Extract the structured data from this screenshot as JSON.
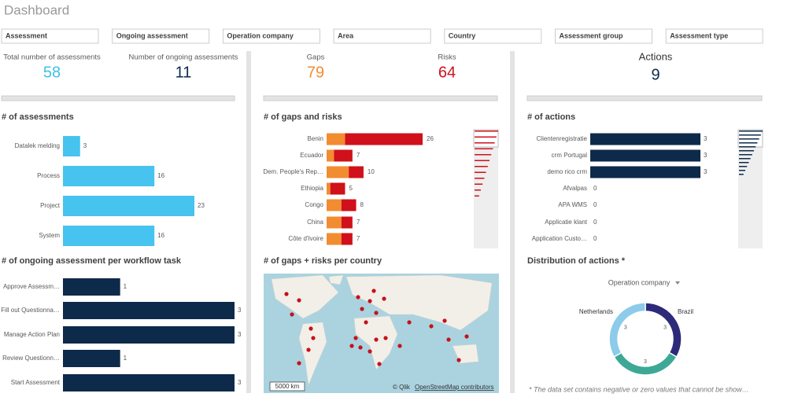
{
  "header": {
    "title": "Dashboard"
  },
  "filters": [
    "Assessment",
    "Ongoing assessment",
    "Operation company",
    "Area",
    "Country",
    "Assessment group",
    "Assessment type"
  ],
  "kpis": [
    {
      "label": "Total number of assessments",
      "value": 58,
      "color": "#3fc0ea"
    },
    {
      "label": "Number of ongoing assessments",
      "value": 11,
      "color": "#0d2a4a"
    },
    {
      "label": "Gaps",
      "value": 79,
      "color": "#f28c30"
    },
    {
      "label": "Risks",
      "value": 64,
      "color": "#d0101a"
    },
    {
      "label": "Actions",
      "value": 9,
      "color": "#0d2a4a"
    }
  ],
  "charts": [
    {
      "type": "hbar",
      "title": "# of assessments",
      "categories": [
        "Datalek melding",
        "Process",
        "Project",
        "System"
      ],
      "values": [
        3,
        16,
        23,
        16
      ],
      "color": "#46c3ee"
    },
    {
      "type": "hbar",
      "title": "# of ongoing assessment per workflow task",
      "categories": [
        "Approve Assessm…",
        "Fill out Questionna…",
        "Manage Action Plan",
        "Review Questionn…",
        "Start Assessment"
      ],
      "values": [
        1,
        3,
        3,
        1,
        3
      ],
      "color": "#0d2a4a"
    },
    {
      "type": "stacked",
      "title": "# of gaps and risks",
      "categories": [
        "Benin",
        "Ecuador",
        "Dem. People's Rep…",
        "Ethiopia",
        "Congo",
        "China",
        "Côte d'Ivoire"
      ],
      "series": [
        {
          "color": "#f28c30",
          "values": [
            5,
            2,
            6,
            1,
            4,
            4,
            4
          ]
        },
        {
          "color": "#d0101a",
          "values": [
            21,
            5,
            4,
            4,
            4,
            3,
            3
          ]
        }
      ],
      "totals": [
        26,
        7,
        10,
        5,
        8,
        7,
        7
      ]
    },
    {
      "type": "hbar",
      "title": "# of actions",
      "categories": [
        "Clientenregistratie",
        "crm Portugal",
        "demo rico crm",
        "Afvalpas",
        "APA WMS",
        "Applicatie klant",
        "Application Custo…"
      ],
      "values": [
        3,
        3,
        3,
        0,
        0,
        0,
        0
      ],
      "color": "#0d2a4a"
    },
    {
      "type": "map",
      "title": "# of gaps + risks per country",
      "scale": "5000 km",
      "attribution": [
        "© Qlik",
        "OpenStreetMap contributors"
      ]
    },
    {
      "type": "donut",
      "title": "Distribution of actions *",
      "dimension": "Operation company",
      "categories": [
        "Brazil",
        null,
        "Netherlands"
      ],
      "values": [
        3,
        3,
        3
      ],
      "colors": [
        "#2d2a7a",
        "#3ea896",
        "#8ccbea"
      ],
      "footnote": "* The data set contains negative or zero values that cannot be show…"
    }
  ]
}
